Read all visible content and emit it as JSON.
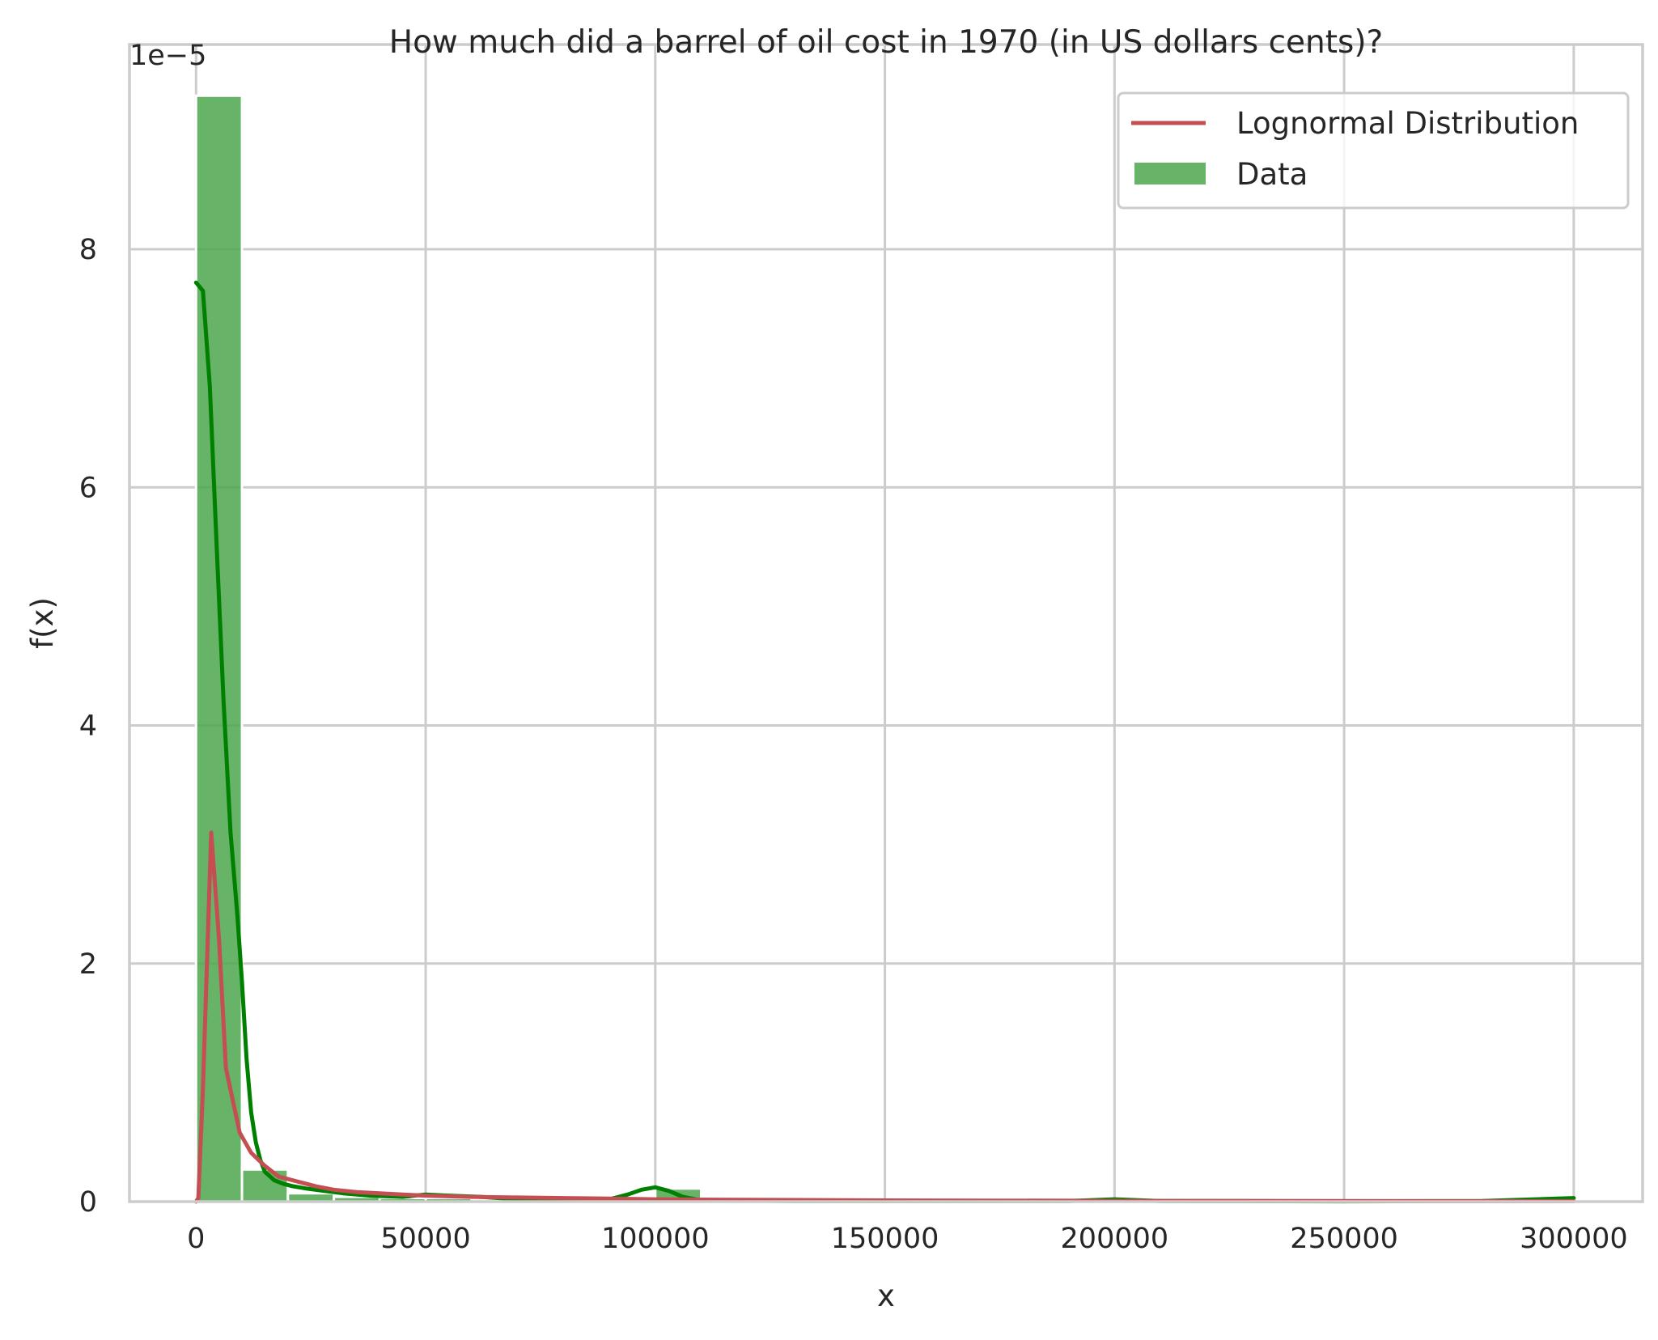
{
  "chart_data": {
    "type": "bar",
    "title": "How much did a barrel of oil cost in 1970 (in US dollars cents)?",
    "xlabel": "x",
    "ylabel": "f(x)",
    "y_offset_label": "1e−5",
    "xlim": [
      -14500,
      315000
    ],
    "ylim": [
      0,
      9.72e-05
    ],
    "xticks": [
      0,
      50000,
      100000,
      150000,
      200000,
      250000,
      300000
    ],
    "xtick_labels": [
      "0",
      "50000",
      "100000",
      "150000",
      "200000",
      "250000",
      "300000"
    ],
    "yticks": [
      0,
      2e-05,
      4e-05,
      6e-05,
      8e-05
    ],
    "ytick_labels": [
      "0",
      "2",
      "4",
      "6",
      "8"
    ],
    "grid": true,
    "legend_position": "top-right",
    "colors": {
      "bars": "#4ca64c",
      "kde": "#008000",
      "lognormal": "#c44e52",
      "grid": "#cccccc",
      "spine": "#cccccc"
    },
    "histogram": {
      "name": "Data",
      "bin_width": 10000,
      "bins": [
        {
          "x0": 0,
          "x1": 10000,
          "density": 9.29e-05
        },
        {
          "x0": 10000,
          "x1": 20000,
          "density": 2.7e-06
        },
        {
          "x0": 20000,
          "x1": 30000,
          "density": 7e-07
        },
        {
          "x0": 30000,
          "x1": 40000,
          "density": 4e-07
        },
        {
          "x0": 40000,
          "x1": 50000,
          "density": 3e-07
        },
        {
          "x0": 50000,
          "x1": 60000,
          "density": 3e-07
        },
        {
          "x0": 60000,
          "x1": 70000,
          "density": 2e-07
        },
        {
          "x0": 70000,
          "x1": 80000,
          "density": 5e-08
        },
        {
          "x0": 80000,
          "x1": 90000,
          "density": 5e-08
        },
        {
          "x0": 90000,
          "x1": 100000,
          "density": 5e-08
        },
        {
          "x0": 100000,
          "x1": 110000,
          "density": 1.1e-06
        },
        {
          "x0": 290000,
          "x1": 300000,
          "density": 2e-07
        }
      ]
    },
    "series": [
      {
        "name": "Lognormal Distribution",
        "x": [
          0,
          500,
          1500,
          3300,
          5000,
          6500,
          9500,
          12000,
          15000,
          18000,
          22000,
          26000,
          30000,
          35000,
          40000,
          45000,
          50000,
          60000,
          70000,
          80000,
          90000,
          100000,
          120000,
          150000,
          200000,
          250000,
          300000
        ],
        "y": [
          0,
          3e-07,
          9.5e-06,
          3.1e-05,
          2.2e-05,
          1.12e-05,
          5.8e-06,
          4.1e-06,
          3e-06,
          2.1e-06,
          1.7e-06,
          1.3e-06,
          1e-06,
          8e-07,
          7e-07,
          6e-07,
          5e-07,
          4e-07,
          3.5e-07,
          3e-07,
          2.5e-07,
          2e-07,
          1.5e-07,
          1e-07,
          7e-08,
          5e-08,
          4e-08
        ]
      },
      {
        "x": [
          0,
          1500,
          3000,
          4500,
          6000,
          7500,
          9000,
          10000,
          11000,
          12000,
          13000,
          14000,
          15000,
          17000,
          19000,
          21000,
          24000,
          28000,
          32000,
          38000,
          45000,
          50000,
          55000,
          62000,
          70000,
          80000,
          90000,
          94000,
          97000,
          100000,
          103000,
          106000,
          110000,
          130000,
          160000,
          190000,
          200000,
          210000,
          250000,
          280000,
          300000
        ],
        "y": [
          7.72e-05,
          7.65e-05,
          6.85e-05,
          5.5e-05,
          4.2e-05,
          3.1e-05,
          2.4e-05,
          1.85e-05,
          1.2e-05,
          7.5e-06,
          5e-06,
          3.5e-06,
          2.5e-06,
          1.8e-06,
          1.5e-06,
          1.3e-06,
          1.1e-06,
          9e-07,
          7e-07,
          5e-07,
          4e-07,
          6e-07,
          5e-07,
          4e-07,
          2e-07,
          1e-07,
          2e-07,
          6e-07,
          1e-06,
          1.2e-06,
          9e-07,
          4e-07,
          1e-07,
          5e-08,
          5e-08,
          5e-08,
          2e-07,
          5e-08,
          3e-08,
          5e-08,
          3e-07
        ]
      }
    ],
    "legend": [
      {
        "label": "Lognormal Distribution",
        "kind": "line"
      },
      {
        "label": "Data",
        "kind": "patch"
      }
    ]
  }
}
